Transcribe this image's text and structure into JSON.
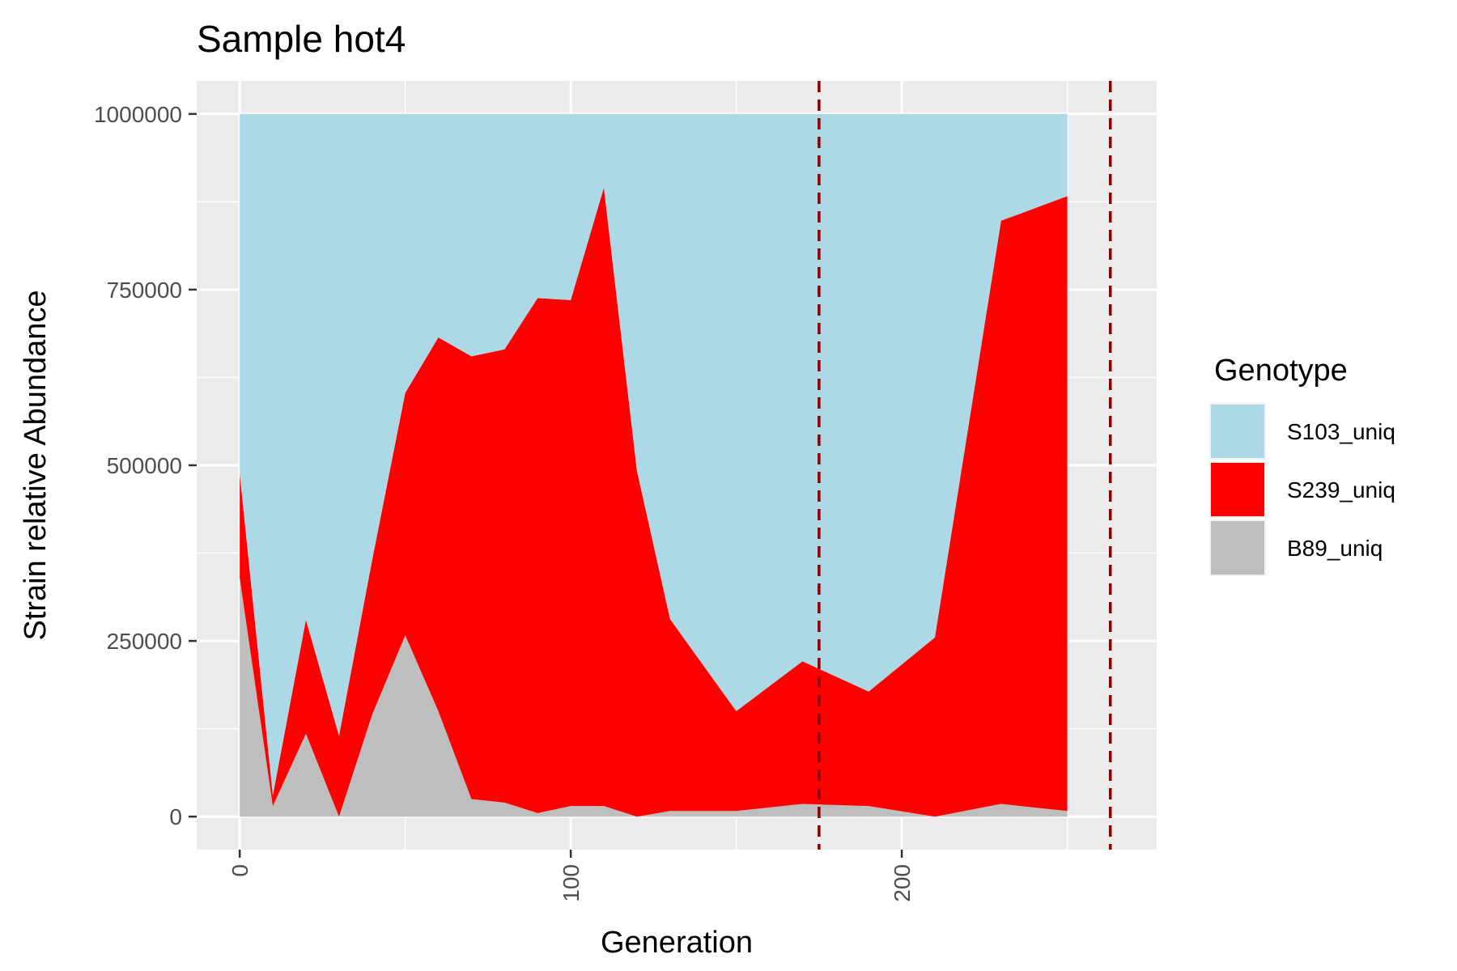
{
  "chart_data": {
    "type": "area",
    "stacked": true,
    "title": "Sample hot4",
    "xlabel": "Generation",
    "ylabel": "Strain relative Abundance",
    "xlim": [
      -13,
      277
    ],
    "ylim": [
      -47000,
      1047000
    ],
    "x_ticks": [
      0,
      100,
      200
    ],
    "y_ticks": [
      0,
      250000,
      500000,
      750000,
      1000000
    ],
    "x_tick_labels": [
      "0",
      "100",
      "200"
    ],
    "y_tick_labels": [
      "0",
      "250000",
      "500000",
      "750000",
      "1000000"
    ],
    "x": [
      0,
      10,
      20,
      30,
      40,
      50,
      60,
      70,
      80,
      90,
      100,
      110,
      120,
      130,
      150,
      170,
      190,
      210,
      230,
      250
    ],
    "series": [
      {
        "name": "B89_uniq",
        "color": "#bebebe",
        "values": [
          340000,
          15000,
          118000,
          0,
          145000,
          258000,
          150000,
          25000,
          20000,
          5000,
          15000,
          15000,
          0,
          8000,
          8000,
          18000,
          15000,
          0,
          18000,
          8000
        ]
      },
      {
        "name": "S239_uniq",
        "color": "#ff0000",
        "values": [
          148000,
          15000,
          162000,
          115000,
          220000,
          345000,
          532000,
          630000,
          645000,
          733000,
          720000,
          880000,
          492000,
          273000,
          142000,
          203000,
          163000,
          255000,
          830000,
          875000
        ]
      },
      {
        "name": "S103_uniq",
        "color": "#add8e6",
        "values": [
          512000,
          970000,
          720000,
          885000,
          635000,
          397000,
          318000,
          345000,
          335000,
          262000,
          265000,
          105000,
          508000,
          719000,
          850000,
          779000,
          822000,
          745000,
          152000,
          117000
        ]
      }
    ],
    "vlines": {
      "x": [
        175,
        263
      ],
      "color": "#8b0000",
      "style": "dashed"
    },
    "legend": {
      "title": "Genotype",
      "position": "right",
      "order": [
        "S103_uniq",
        "S239_uniq",
        "B89_uniq"
      ]
    },
    "grid": true,
    "panel_background": "#ebebeb"
  }
}
